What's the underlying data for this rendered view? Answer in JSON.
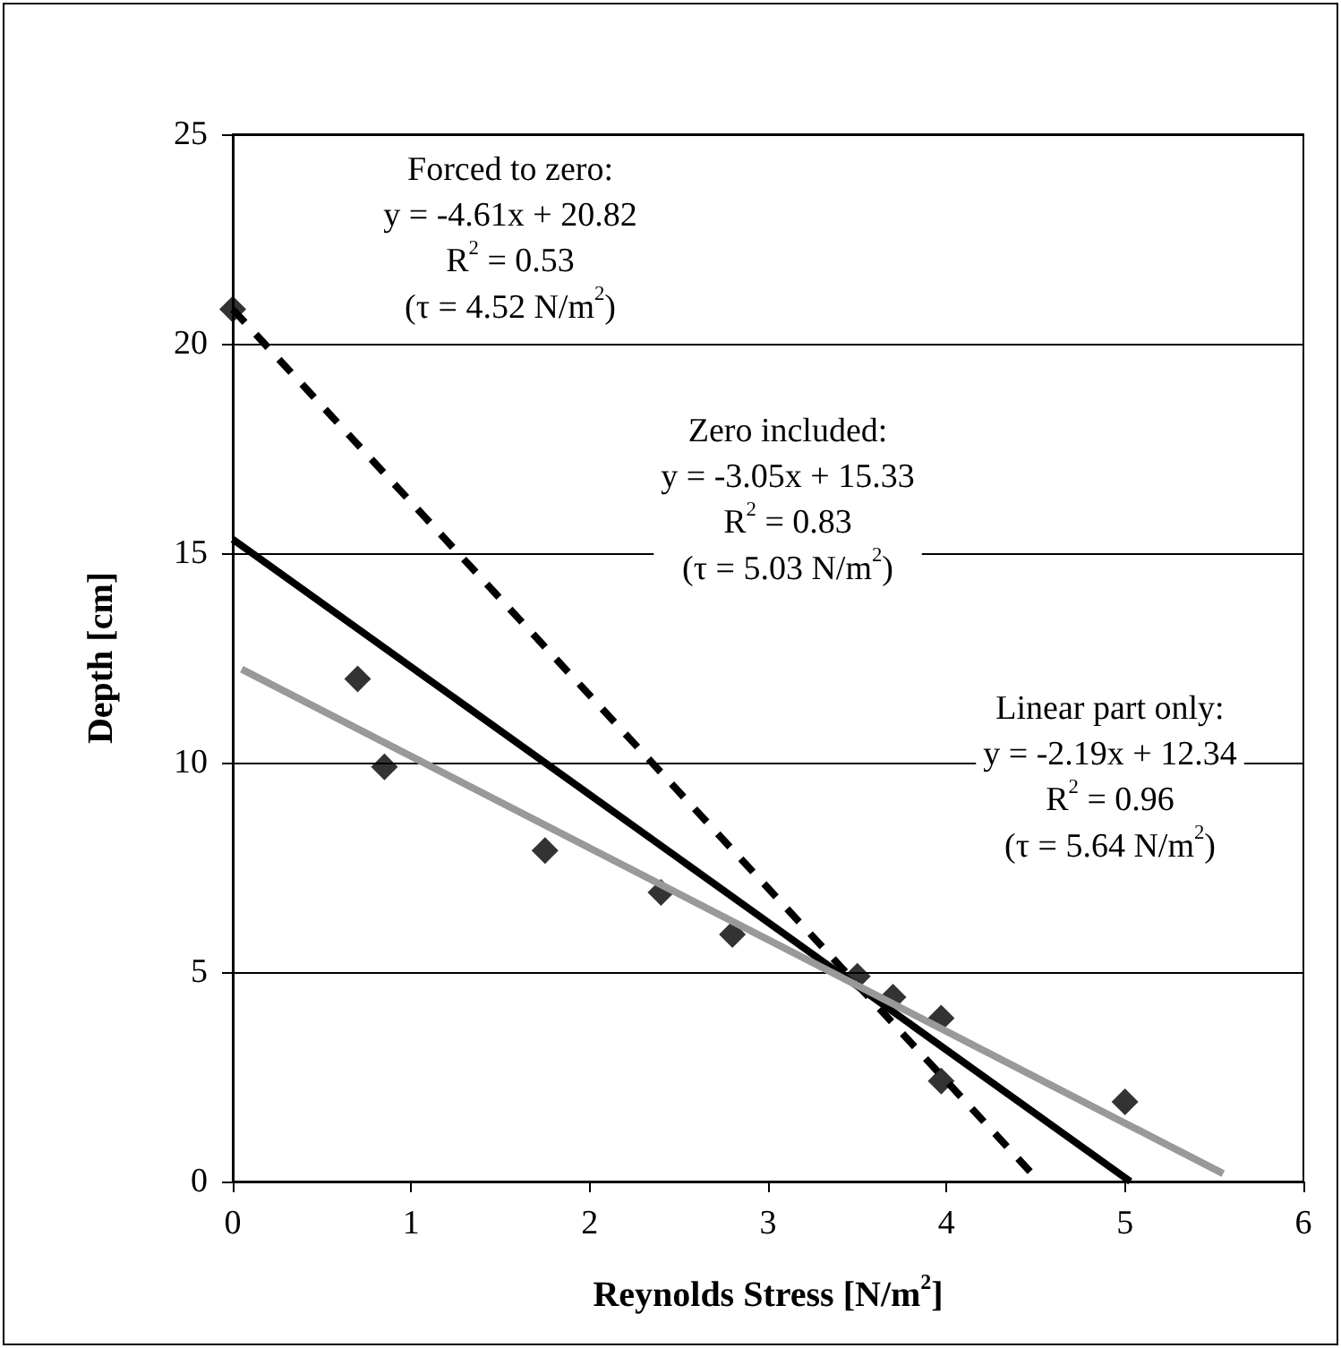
{
  "chart_data": {
    "type": "scatter",
    "xlabel": "Reynolds Stress [N/m$^{2}$]",
    "ylabel": "Depth [cm]",
    "xlim": [
      0,
      6
    ],
    "xticks": [
      0,
      1,
      2,
      3,
      4,
      5,
      6
    ],
    "ylim": [
      0,
      25
    ],
    "yticks": [
      0,
      5,
      10,
      15,
      20,
      25
    ],
    "grid": "y",
    "marker": "diamond",
    "series": [
      {
        "color": "#000000",
        "x": [
          0,
          0.7,
          0.85,
          1.75,
          2.4,
          2.8,
          3.5,
          3.7,
          3.97,
          3.97,
          5.0
        ],
        "values": [
          20.82,
          12.0,
          9.9,
          7.9,
          6.9,
          5.9,
          4.9,
          4.4,
          3.9,
          2.4,
          1.9
        ]
      },
      {
        "type": "line",
        "color": "#000000",
        "line_style": "dashed",
        "marker": "none",
        "x": [
          0,
          4.52
        ],
        "values": [
          20.82,
          0
        ]
      },
      {
        "type": "line",
        "color": "#000000",
        "line_style": "solid",
        "marker": "none",
        "x": [
          0,
          5.03
        ],
        "values": [
          15.33,
          0
        ]
      },
      {
        "type": "line",
        "color": "#999999",
        "line_style": "solid",
        "marker": "none",
        "x": [
          0.05,
          5.55
        ],
        "values": [
          12.23,
          0.19
        ]
      }
    ],
    "annotations": [
      "Forced to zero:\ny = -4.61x + 20.82\nR$^{2}$ = 0.53\n(τ = 4.52 N/m$^{2}$)",
      "Zero included:\ny = -3.05x + 15.33\nR$^{2}$ = 0.83\n(τ = 5.03 N/m$^{2}$)",
      "Linear part only:\ny = -2.19x + 12.34\nR$^{2}$ = 0.96\n(τ = 5.64 N/m$^{2}$)"
    ]
  }
}
